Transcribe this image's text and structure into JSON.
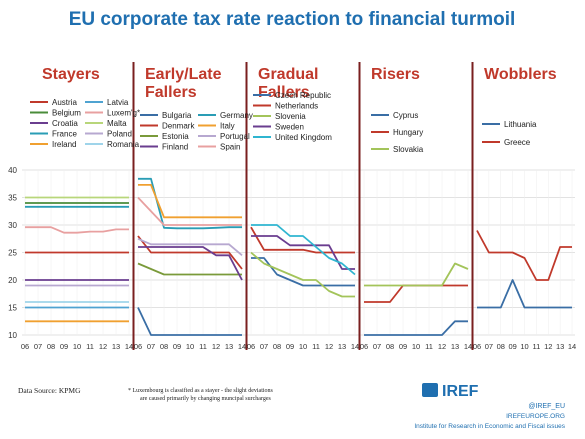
{
  "title": "EU corporate tax rate reaction to financial turmoil",
  "source": "Data Source: KPMG",
  "footnote_line1": "* Luxembourg is classified as a stayer - the slight deviations",
  "footnote_line2": "are caused primarily by changing muncipal surcharges",
  "logo": {
    "text": "IREF",
    "handle": "@IREF_EU",
    "site": "IREFEUROPE.ORG",
    "tagline": "Institute for Research in Economic and Fiscal issues"
  },
  "colors": {
    "title": "#1f6fb0",
    "group_title": "#c0392b",
    "divider": "#7a1f1f",
    "grid": "#d9d9d9"
  },
  "chart_data": {
    "type": "line",
    "title": "EU corporate tax rate reaction to financial turmoil",
    "x_categories": [
      "06",
      "07",
      "08",
      "09",
      "10",
      "11",
      "12",
      "13",
      "14"
    ],
    "ylim": [
      10,
      40
    ],
    "y_ticks": [
      10,
      15,
      20,
      25,
      30,
      35,
      40
    ],
    "grid": true,
    "panels": [
      {
        "name": "Stayers",
        "title_lines": [
          "Stayers"
        ],
        "series": [
          {
            "name": "Austria",
            "color": "#c0392b",
            "values": [
              25,
              25,
              25,
              25,
              25,
              25,
              25,
              25,
              25
            ]
          },
          {
            "name": "Latvia",
            "color": "#4fa3d1",
            "values": [
              15,
              15,
              15,
              15,
              15,
              15,
              15,
              15,
              15
            ]
          },
          {
            "name": "Belgium",
            "color": "#4a8c3a",
            "values": [
              34,
              34,
              34,
              34,
              34,
              34,
              34,
              34,
              34
            ]
          },
          {
            "name": "Luxem'g*",
            "color": "#e8a0a0",
            "values": [
              29.6,
              29.6,
              29.6,
              28.6,
              28.6,
              28.8,
              28.8,
              29.2,
              29.2
            ]
          },
          {
            "name": "Croatia",
            "color": "#6a3d8f",
            "values": [
              20,
              20,
              20,
              20,
              20,
              20,
              20,
              20,
              20
            ]
          },
          {
            "name": "Malta",
            "color": "#b8d67a",
            "values": [
              35,
              35,
              35,
              35,
              35,
              35,
              35,
              35,
              35
            ]
          },
          {
            "name": "France",
            "color": "#2a9db5",
            "values": [
              33.3,
              33.3,
              33.3,
              33.3,
              33.3,
              33.3,
              33.3,
              33.3,
              33.3
            ]
          },
          {
            "name": "Poland",
            "color": "#b7a8d0",
            "values": [
              19,
              19,
              19,
              19,
              19,
              19,
              19,
              19,
              19
            ]
          },
          {
            "name": "Ireland",
            "color": "#f0a030",
            "values": [
              12.5,
              12.5,
              12.5,
              12.5,
              12.5,
              12.5,
              12.5,
              12.5,
              12.5
            ]
          },
          {
            "name": "Romania",
            "color": "#9fd4ea",
            "values": [
              16,
              16,
              16,
              16,
              16,
              16,
              16,
              16,
              16
            ]
          }
        ]
      },
      {
        "name": "Early/Late Fallers",
        "title_lines": [
          "Early/Late",
          "Fallers"
        ],
        "series": [
          {
            "name": "Bulgaria",
            "color": "#3a6ea5",
            "values": [
              15,
              10,
              10,
              10,
              10,
              10,
              10,
              10,
              10
            ]
          },
          {
            "name": "Germany",
            "color": "#2a9db5",
            "values": [
              38.4,
              38.4,
              29.5,
              29.4,
              29.4,
              29.4,
              29.5,
              29.6,
              29.6
            ]
          },
          {
            "name": "Denmark",
            "color": "#c0392b",
            "values": [
              28,
              25,
              25,
              25,
              25,
              25,
              25,
              25,
              22
            ]
          },
          {
            "name": "Italy",
            "color": "#f0a030",
            "values": [
              37.3,
              37.3,
              31.4,
              31.4,
              31.4,
              31.4,
              31.4,
              31.4,
              31.4
            ]
          },
          {
            "name": "Estonia",
            "color": "#7a9a3a",
            "values": [
              23,
              22,
              21,
              21,
              21,
              21,
              21,
              21,
              21
            ]
          },
          {
            "name": "Portugal",
            "color": "#b7a8d0",
            "values": [
              27.5,
              26.5,
              26.5,
              26.5,
              26.5,
              26.5,
              26.5,
              26.5,
              24.5
            ]
          },
          {
            "name": "Finland",
            "color": "#6a3d8f",
            "values": [
              26,
              26,
              26,
              26,
              26,
              26,
              24.5,
              24.5,
              20
            ]
          },
          {
            "name": "Spain",
            "color": "#e8a0a0",
            "values": [
              35,
              32.5,
              30,
              30,
              30,
              30,
              30,
              30,
              30
            ]
          }
        ]
      },
      {
        "name": "Gradual Fallers",
        "title_lines": [
          "Gradual",
          "Fallers"
        ],
        "series": [
          {
            "name": "Czech Republic",
            "color": "#3a6ea5",
            "values": [
              24,
              24,
              21,
              20,
              19,
              19,
              19,
              19,
              19
            ]
          },
          {
            "name": "Netherlands",
            "color": "#c0392b",
            "values": [
              29.6,
              25.5,
              25.5,
              25.5,
              25.5,
              25,
              25,
              25,
              25
            ]
          },
          {
            "name": "Slovenia",
            "color": "#a3c45a",
            "values": [
              25,
              23,
              22,
              21,
              20,
              20,
              18,
              17,
              17
            ]
          },
          {
            "name": "Sweden",
            "color": "#6a3d8f",
            "values": [
              28,
              28,
              28,
              26.3,
              26.3,
              26.3,
              26.3,
              22,
              22
            ]
          },
          {
            "name": "United Kingdom",
            "color": "#2fb5d0",
            "values": [
              30,
              30,
              30,
              28,
              28,
              26,
              24,
              23,
              21
            ]
          }
        ]
      },
      {
        "name": "Risers",
        "title_lines": [
          "Risers"
        ],
        "series": [
          {
            "name": "Cyprus",
            "color": "#3a6ea5",
            "values": [
              10,
              10,
              10,
              10,
              10,
              10,
              10,
              12.5,
              12.5
            ]
          },
          {
            "name": "Hungary",
            "color": "#c0392b",
            "values": [
              16,
              16,
              16,
              19,
              19,
              19,
              19,
              19,
              19
            ]
          },
          {
            "name": "Slovakia",
            "color": "#a3c45a",
            "values": [
              19,
              19,
              19,
              19,
              19,
              19,
              19,
              23,
              22
            ]
          }
        ]
      },
      {
        "name": "Wobblers",
        "title_lines": [
          "Wobblers"
        ],
        "series": [
          {
            "name": "Lithuania",
            "color": "#3a6ea5",
            "values": [
              15,
              15,
              15,
              20,
              15,
              15,
              15,
              15,
              15
            ]
          },
          {
            "name": "Greece",
            "color": "#c0392b",
            "values": [
              29,
              25,
              25,
              25,
              24,
              20,
              20,
              26,
              26
            ]
          }
        ]
      }
    ]
  }
}
